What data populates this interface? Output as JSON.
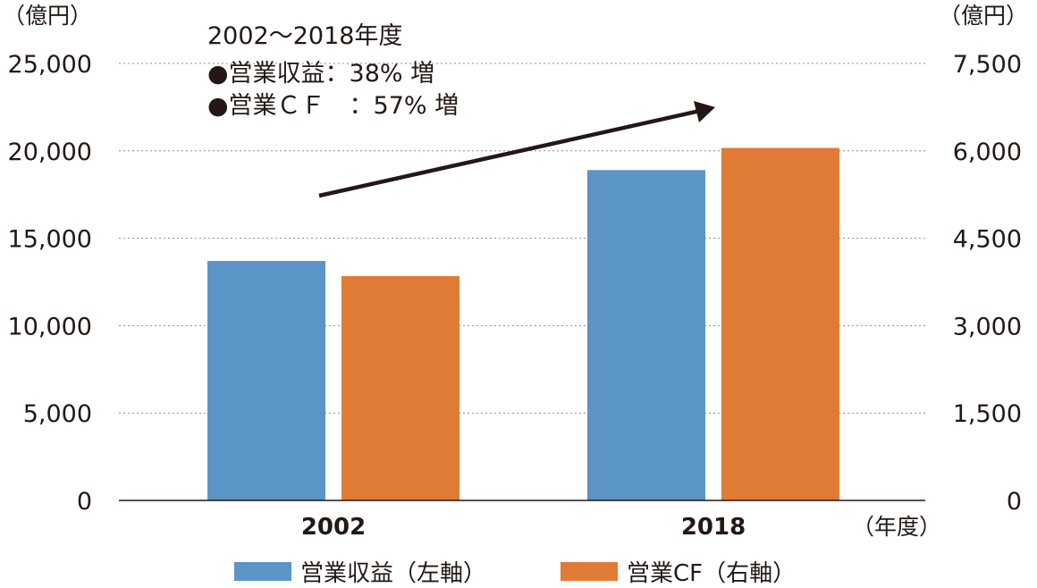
{
  "chart_data": {
    "type": "bar",
    "categories": [
      "2002",
      "2018"
    ],
    "series": [
      {
        "name": "営業収益（左軸）",
        "axis": "left",
        "color": "#5b94c6",
        "values": [
          13700,
          18900
        ]
      },
      {
        "name": "営業CF（右軸）",
        "axis": "right",
        "color": "#e07b35",
        "values": [
          3850,
          6050
        ]
      }
    ],
    "left_axis": {
      "unit": "（億円）",
      "min": 0,
      "max": 25000,
      "tick_labels": [
        "0",
        "5,000",
        "10,000",
        "15,000",
        "20,000",
        "25,000"
      ]
    },
    "right_axis": {
      "unit": "（億円）",
      "min": 0,
      "max": 7500,
      "tick_labels": [
        "0",
        "1,500",
        "3,000",
        "4,500",
        "6,000",
        "7,500"
      ]
    },
    "x_unit": "（年度）",
    "grid": true,
    "annotation": {
      "lines": [
        "2002〜2018年度",
        "●営業収益：38% 増",
        "●営業ＣＦ　：57% 増"
      ],
      "arrow": "rising trend"
    }
  },
  "colors": {
    "revenue": "#5b94c6",
    "cashflow": "#e07b35",
    "text": "#231815",
    "grid": "#8c8c8c"
  }
}
